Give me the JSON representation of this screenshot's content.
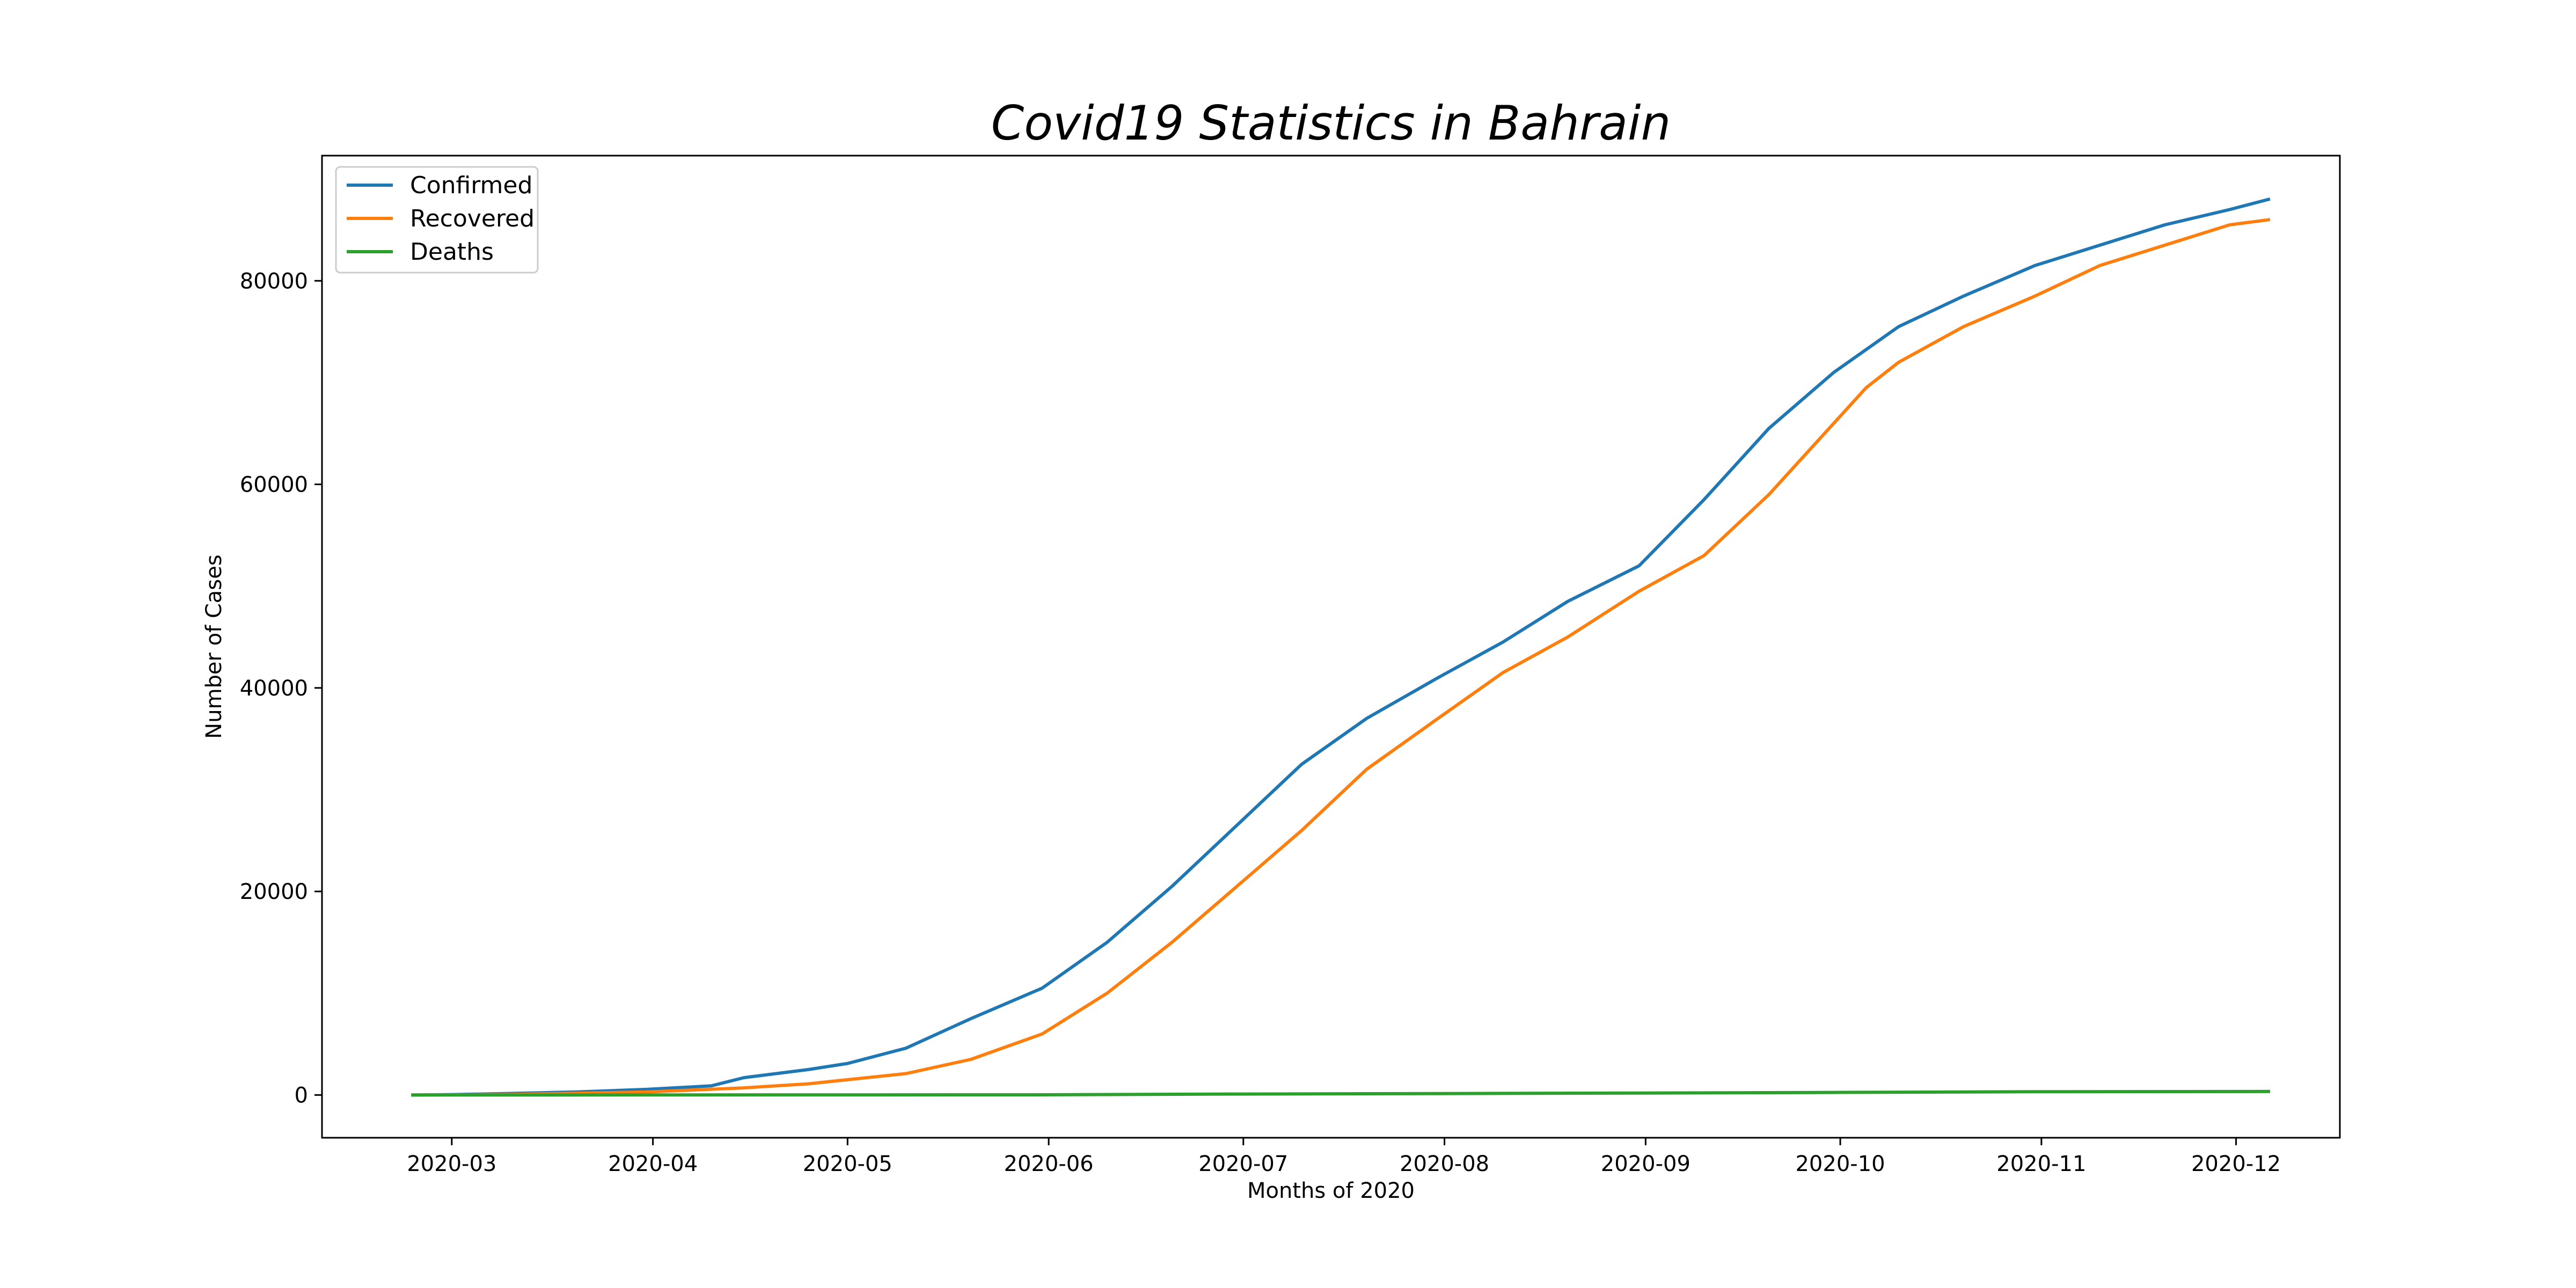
{
  "chart_data": {
    "type": "line",
    "title": "Covid19 Statistics in Bahrain",
    "xlabel": "Months of 2020",
    "ylabel": "Number of Cases",
    "xlim": [
      "2020-02-10",
      "2020-12-17"
    ],
    "ylim": [
      -4200,
      92300
    ],
    "x_ticks": [
      "2020-03",
      "2020-04",
      "2020-05",
      "2020-06",
      "2020-07",
      "2020-08",
      "2020-09",
      "2020-10",
      "2020-11",
      "2020-12"
    ],
    "y_ticks": [
      0,
      20000,
      40000,
      60000,
      80000
    ],
    "grid": false,
    "legend_position": "top-left",
    "series": [
      {
        "name": "Confirmed",
        "color": "#1f77b4",
        "points": [
          [
            "2020-02-24",
            0
          ],
          [
            "2020-03-01",
            40
          ],
          [
            "2020-03-10",
            150
          ],
          [
            "2020-03-20",
            300
          ],
          [
            "2020-03-31",
            550
          ],
          [
            "2020-04-10",
            900
          ],
          [
            "2020-04-15",
            1700
          ],
          [
            "2020-04-25",
            2500
          ],
          [
            "2020-05-01",
            3100
          ],
          [
            "2020-05-10",
            4600
          ],
          [
            "2020-05-20",
            7500
          ],
          [
            "2020-05-31",
            10500
          ],
          [
            "2020-06-10",
            15000
          ],
          [
            "2020-06-20",
            20500
          ],
          [
            "2020-06-30",
            26500
          ],
          [
            "2020-07-10",
            32500
          ],
          [
            "2020-07-20",
            37000
          ],
          [
            "2020-07-31",
            41000
          ],
          [
            "2020-08-10",
            44500
          ],
          [
            "2020-08-20",
            48500
          ],
          [
            "2020-08-31",
            52000
          ],
          [
            "2020-09-10",
            58500
          ],
          [
            "2020-09-20",
            65500
          ],
          [
            "2020-09-30",
            71000
          ],
          [
            "2020-10-10",
            75500
          ],
          [
            "2020-10-20",
            78500
          ],
          [
            "2020-10-31",
            81500
          ],
          [
            "2020-11-10",
            83500
          ],
          [
            "2020-11-20",
            85500
          ],
          [
            "2020-11-30",
            87000
          ],
          [
            "2020-12-06",
            88000
          ]
        ]
      },
      {
        "name": "Recovered",
        "color": "#ff7f0e",
        "points": [
          [
            "2020-02-24",
            0
          ],
          [
            "2020-03-10",
            50
          ],
          [
            "2020-03-31",
            300
          ],
          [
            "2020-04-15",
            700
          ],
          [
            "2020-04-25",
            1100
          ],
          [
            "2020-05-10",
            2100
          ],
          [
            "2020-05-20",
            3500
          ],
          [
            "2020-05-31",
            6000
          ],
          [
            "2020-06-10",
            10000
          ],
          [
            "2020-06-20",
            15000
          ],
          [
            "2020-06-30",
            20500
          ],
          [
            "2020-07-10",
            26000
          ],
          [
            "2020-07-20",
            32000
          ],
          [
            "2020-07-31",
            37000
          ],
          [
            "2020-08-10",
            41500
          ],
          [
            "2020-08-20",
            45000
          ],
          [
            "2020-08-31",
            49500
          ],
          [
            "2020-09-10",
            53000
          ],
          [
            "2020-09-20",
            59000
          ],
          [
            "2020-09-30",
            66000
          ],
          [
            "2020-10-05",
            69500
          ],
          [
            "2020-10-10",
            72000
          ],
          [
            "2020-10-20",
            75500
          ],
          [
            "2020-10-31",
            78500
          ],
          [
            "2020-11-10",
            81500
          ],
          [
            "2020-11-20",
            83500
          ],
          [
            "2020-11-30",
            85500
          ],
          [
            "2020-12-06",
            86000
          ]
        ]
      },
      {
        "name": "Deaths",
        "color": "#2ca02c",
        "points": [
          [
            "2020-02-24",
            0
          ],
          [
            "2020-05-31",
            20
          ],
          [
            "2020-06-30",
            90
          ],
          [
            "2020-07-31",
            140
          ],
          [
            "2020-08-31",
            190
          ],
          [
            "2020-09-30",
            250
          ],
          [
            "2020-10-31",
            320
          ],
          [
            "2020-11-30",
            340
          ],
          [
            "2020-12-06",
            345
          ]
        ]
      }
    ]
  }
}
